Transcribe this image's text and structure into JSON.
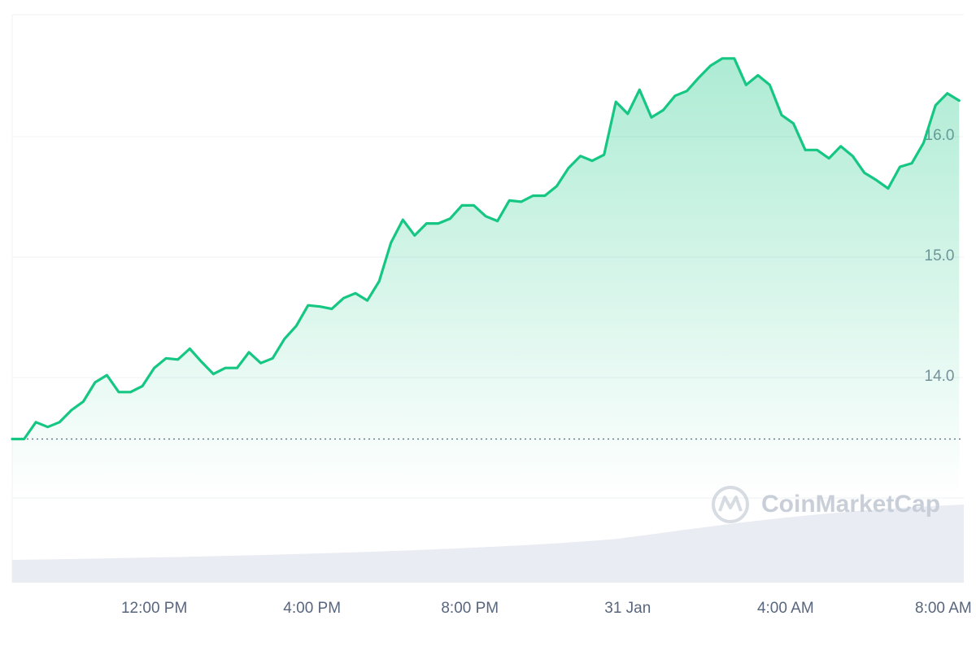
{
  "chart_data": {
    "type": "line",
    "watermark": "CoinMarketCap",
    "x": [
      8.4,
      8.7,
      9,
      9.3,
      9.6,
      9.9,
      10.2,
      10.5,
      10.8,
      11.1,
      11.4,
      11.7,
      12,
      12.3,
      12.6,
      12.9,
      13.2,
      13.5,
      13.8,
      14.1,
      14.4,
      14.7,
      15,
      15.3,
      15.6,
      15.9,
      16.2,
      16.5,
      16.8,
      17.1,
      17.4,
      17.7,
      18,
      18.3,
      18.6,
      18.9,
      19.2,
      19.5,
      19.8,
      20.1,
      20.4,
      20.7,
      21,
      21.3,
      21.6,
      21.9,
      22.2,
      22.5,
      22.8,
      23.1,
      23.4,
      23.7,
      24,
      24.3,
      24.6,
      24.9,
      25.2,
      25.5,
      25.8,
      26.1,
      26.4,
      26.7,
      27,
      27.3,
      27.6,
      27.9,
      28.2,
      28.5,
      28.8,
      29.1,
      29.4,
      29.7,
      30,
      30.3,
      30.6,
      30.9,
      31.2,
      31.5,
      31.8,
      32.1,
      32.4
    ],
    "series": [
      {
        "color": "#16c784",
        "values": [
          13.49,
          13.49,
          13.63,
          13.59,
          13.63,
          13.73,
          13.8,
          13.96,
          14.02,
          13.88,
          13.88,
          13.93,
          14.08,
          14.16,
          14.15,
          14.24,
          14.13,
          14.03,
          14.08,
          14.08,
          14.21,
          14.12,
          14.16,
          14.32,
          14.43,
          14.6,
          14.59,
          14.57,
          14.66,
          14.7,
          14.64,
          14.8,
          15.12,
          15.31,
          15.18,
          15.28,
          15.28,
          15.32,
          15.43,
          15.43,
          15.34,
          15.3,
          15.47,
          15.46,
          15.51,
          15.51,
          15.59,
          15.74,
          15.84,
          15.8,
          15.85,
          16.29,
          16.19,
          16.39,
          16.16,
          16.22,
          16.34,
          16.38,
          16.49,
          16.59,
          16.65,
          16.65,
          16.43,
          16.51,
          16.43,
          16.18,
          16.11,
          15.89,
          15.89,
          15.82,
          15.92,
          15.84,
          15.7,
          15.64,
          15.57,
          15.75,
          15.78,
          15.95,
          16.26,
          16.36,
          16.3
        ]
      }
    ],
    "baseline": 13.49,
    "xlim": [
      8.4,
      32.58
    ],
    "xticks": [
      {
        "value": 12,
        "label": "12:00 PM"
      },
      {
        "value": 16,
        "label": "4:00 PM"
      },
      {
        "value": 20,
        "label": "8:00 PM"
      },
      {
        "value": 24,
        "label": "31 Jan"
      },
      {
        "value": 28,
        "label": "4:00 AM"
      },
      {
        "value": 32,
        "label": "8:00 AM"
      }
    ],
    "ylim": [
      13.0,
      17.0
    ],
    "yticks": [
      {
        "value": 14,
        "label": "14.0"
      },
      {
        "value": 15,
        "label": "15.0"
      },
      {
        "value": 16,
        "label": "16.0"
      }
    ],
    "grid": true
  }
}
